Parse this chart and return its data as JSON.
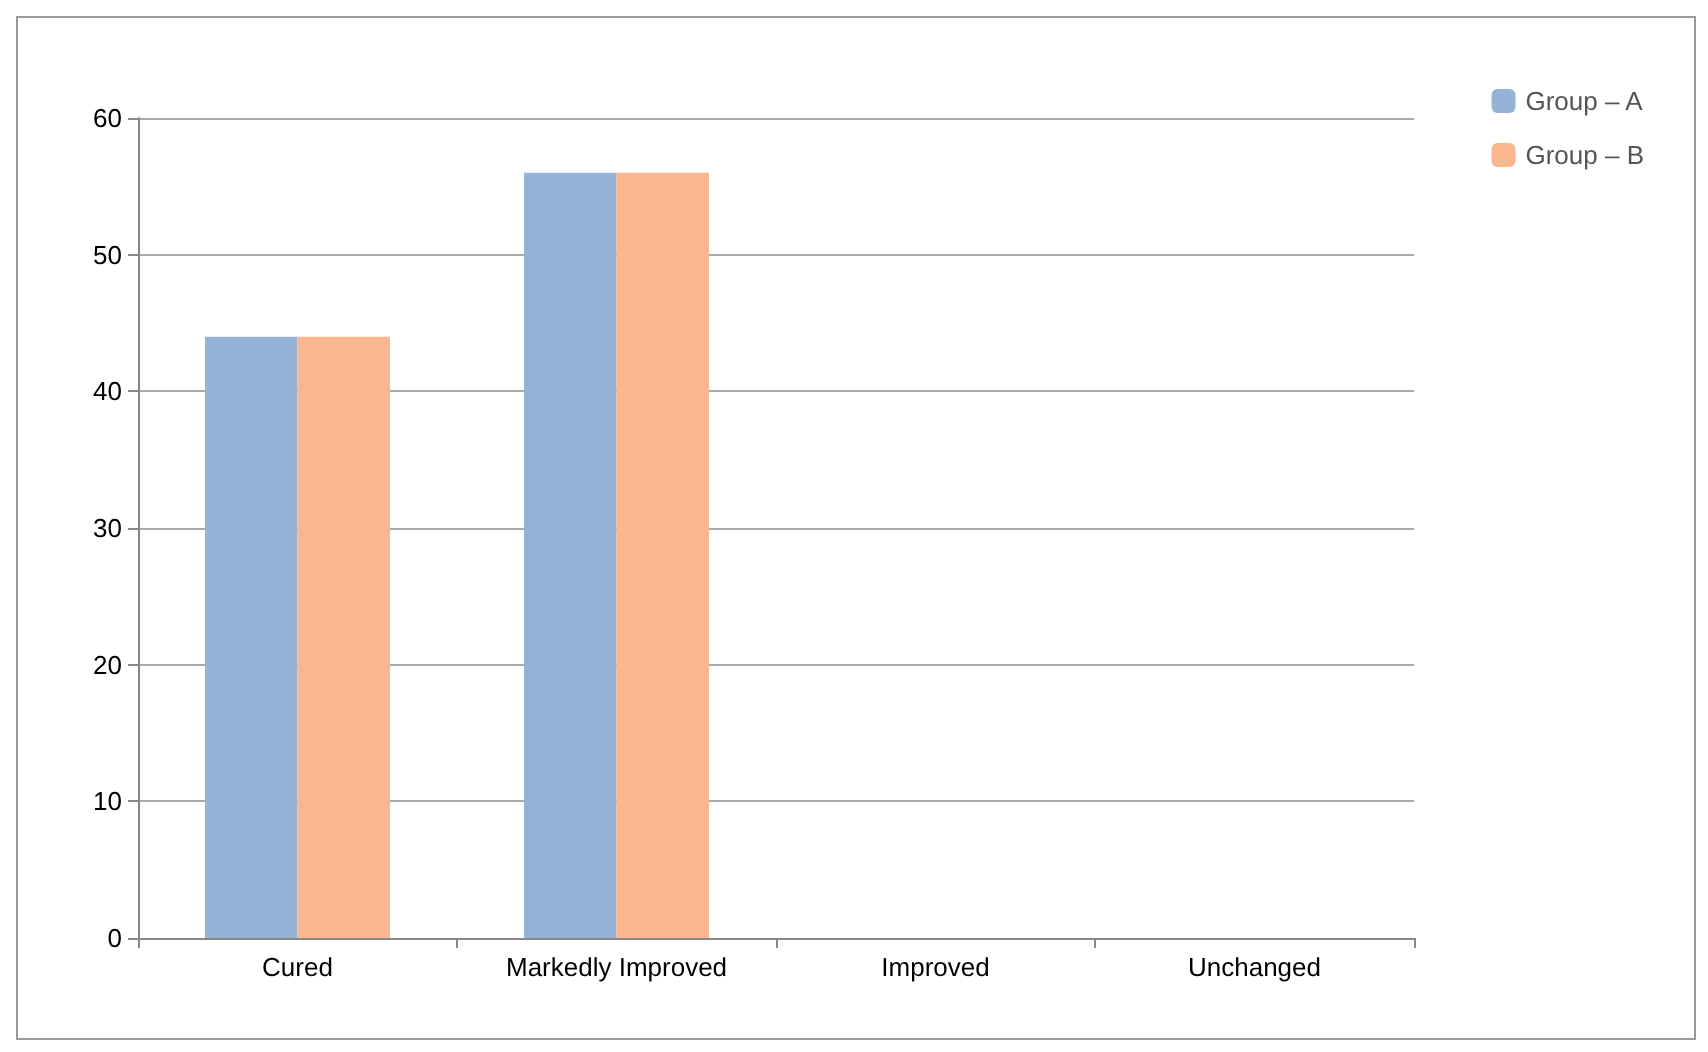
{
  "chart_data": {
    "type": "bar",
    "categories": [
      "Cured",
      "Markedly Improved",
      "Improved",
      "Unchanged"
    ],
    "series": [
      {
        "name": "Group – A",
        "color": "#95b3d7",
        "values": [
          44,
          56,
          0,
          0
        ]
      },
      {
        "name": "Group – B",
        "color": "#fab68f",
        "values": [
          44,
          56,
          0,
          0
        ]
      }
    ],
    "ylim": [
      0,
      60
    ],
    "yticks": [
      0,
      10,
      20,
      30,
      40,
      50,
      60
    ],
    "grid": "y",
    "legend": "top right"
  }
}
